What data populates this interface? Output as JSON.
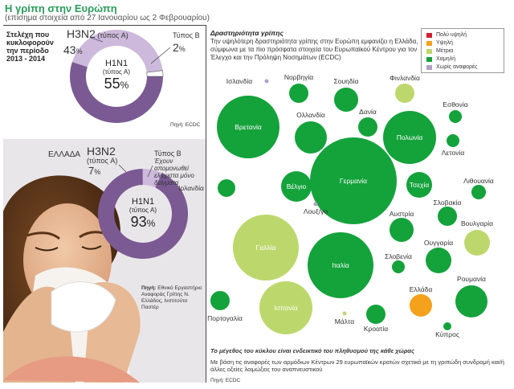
{
  "title": "Η γρίπη στην Ευρώπη",
  "subtitle": "(επίσημα στοιχεία από 27 Ιανουαρίου ως 2 Φεβρουαρίου)",
  "europe": {
    "caption": "Στελέχη που κυκλοφορούν την περίοδο 2013 - 2014",
    "h3n2_label": "H3N2",
    "h3n2_type": "(τύπος A)",
    "h3n2_pct": "43",
    "typeb_label": "Τύπος B",
    "typeb_pct": "2",
    "h1n1_label": "H1N1",
    "h1n1_type": "(τύπος A)",
    "h1n1_pct": "55",
    "pct_sign": "%",
    "source": "Πηγή: ECDC",
    "shares": {
      "h3n2": 43,
      "typeb": 2,
      "h1n1": 55
    }
  },
  "greece": {
    "title": "ΕΛΛΑΔΑ",
    "h3n2_label": "H3N2",
    "h3n2_type": "(τύπος A)",
    "h3n2_pct": "7",
    "typeb_title": "Τύπος B",
    "typeb_note": "Έχουν απομονωθεί ελάχιστα μόνο δείγματα",
    "h1n1_label": "H1N1",
    "h1n1_type": "(τύπος A)",
    "h1n1_pct": "93",
    "pct_sign": "%",
    "source_head": "Πηγή:",
    "source_body": "Εθνικό Εργαστήριο Αναφοράς Γρίπης Ν. Ελλάδος, Ινστιτούτο Παστέρ",
    "shares": {
      "h3n2": 7,
      "h1n1": 93
    }
  },
  "activity": {
    "title": "Δραστηριότητα γρίπης",
    "intro": "Την υψηλότερη δραστηριότητα γρίπης στην Ευρώπη εμφανίζει η Ελλάδα, σύμφωνα με τα πιο πρόσφατα στοιχεία του Ευρωπαϊκού Κέντρου για τον Έλεγχο και την Πρόληψη Νοσημάτων (ECDC)",
    "legend": [
      {
        "label": "Πολύ υψηλή",
        "color": "#cf1f2c"
      },
      {
        "label": "Υψηλή",
        "color": "#f4a11c"
      },
      {
        "label": "Μέτρια",
        "color": "#bcd86c"
      },
      {
        "label": "Χαμηλή",
        "color": "#14a23b"
      },
      {
        "label": "Χωρίς αναφορές",
        "color": "#b3a0c9"
      }
    ],
    "size_note": "Το μέγεθος του κύκλου είναι ενδεικτικό του πληθυσμού της κάθε χώρας",
    "footer": "Με βάση τις αναφορές των αρμόδιων Κέντρων 29 ευρωπαϊκών κρατών σχετικά με τη γριπώδη συνδρομή και/ή άλλες οξείες λοιμώξεις του αναπνευστικού",
    "source": "Πηγή: ECDC",
    "countries": [
      {
        "name": "Ισλανδία",
        "level": "none"
      },
      {
        "name": "Νορβηγία",
        "level": "low"
      },
      {
        "name": "Σουηδία",
        "level": "low"
      },
      {
        "name": "Φινλανδία",
        "level": "medium"
      },
      {
        "name": "Εσθονία",
        "level": "low"
      },
      {
        "name": "Βρετανία",
        "level": "low"
      },
      {
        "name": "Ολλανδία",
        "level": "low"
      },
      {
        "name": "Δανία",
        "level": "low"
      },
      {
        "name": "Πολωνία",
        "level": "low"
      },
      {
        "name": "Λετονία",
        "level": "low"
      },
      {
        "name": "Γερμανία",
        "level": "low"
      },
      {
        "name": "Τσεχία",
        "level": "low"
      },
      {
        "name": "Ιρλανδία",
        "level": "low"
      },
      {
        "name": "Βέλγιο",
        "level": "low"
      },
      {
        "name": "Λουξ/γο",
        "level": "none"
      },
      {
        "name": "Λιθουανία",
        "level": "low"
      },
      {
        "name": "Σλοβακία",
        "level": "low"
      },
      {
        "name": "Αυστρία",
        "level": "low"
      },
      {
        "name": "Βουλγαρία",
        "level": "medium"
      },
      {
        "name": "Γαλλία",
        "level": "medium"
      },
      {
        "name": "Ιταλία",
        "level": "low"
      },
      {
        "name": "Ουγγαρία",
        "level": "low"
      },
      {
        "name": "Σλοβενία",
        "level": "low"
      },
      {
        "name": "Ρουμανία",
        "level": "low"
      },
      {
        "name": "Ελλάδα",
        "level": "high"
      },
      {
        "name": "Ισπανία",
        "level": "medium"
      },
      {
        "name": "Πορτογαλία",
        "level": "low"
      },
      {
        "name": "Μάλτα",
        "level": "medium"
      },
      {
        "name": "Κροατία",
        "level": "low"
      },
      {
        "name": "Κύπρος",
        "level": "low"
      }
    ],
    "level_colors": {
      "none": "#b3a0c9",
      "low": "#14a23b",
      "medium": "#bcd86c",
      "high": "#f4a11c",
      "very_high": "#cf1f2c"
    }
  }
}
